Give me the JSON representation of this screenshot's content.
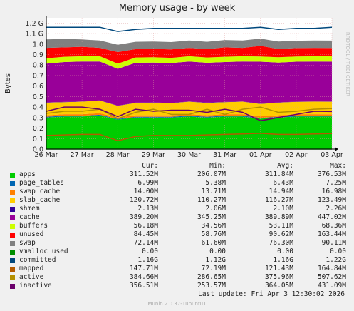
{
  "chart_data": {
    "type": "area",
    "title": "Memory usage - by week",
    "ylabel": "Bytes",
    "side_label": "RRDTOOL / TOBI OETIKER",
    "ylim": [
      0,
      1.25
    ],
    "y_tick_labels": [
      "0.0",
      "0.1",
      "0.2",
      "0.3",
      "0.4",
      "0.5",
      "0.6",
      "0.7",
      "0.8",
      "0.9",
      "1.0",
      "1.1 G",
      "1.2 G"
    ],
    "x_tick_labels": [
      "26 Mar",
      "27 Mar",
      "28 Mar",
      "29 Mar",
      "30 Mar",
      "31 Mar",
      "01 Apr",
      "02 Apr",
      "03 Apr"
    ],
    "x": [
      0,
      0.5,
      1,
      1.5,
      2,
      2.5,
      3,
      3.5,
      4,
      4.5,
      5,
      5.5,
      6,
      6.5,
      7,
      7.5,
      8
    ],
    "stack": [
      {
        "name": "apps",
        "color": "#00cc00",
        "values": [
          0.3,
          0.31,
          0.31,
          0.32,
          0.28,
          0.3,
          0.3,
          0.3,
          0.31,
          0.3,
          0.31,
          0.31,
          0.29,
          0.3,
          0.31,
          0.31,
          0.31
        ]
      },
      {
        "name": "page_tables",
        "color": "#0066b3",
        "values": [
          0.007,
          0.007,
          0.007,
          0.007,
          0.007,
          0.007,
          0.007,
          0.007,
          0.007,
          0.007,
          0.007,
          0.007,
          0.007,
          0.007,
          0.007,
          0.007,
          0.007
        ]
      },
      {
        "name": "swap_cache",
        "color": "#ff8000",
        "values": [
          0.015,
          0.015,
          0.015,
          0.015,
          0.015,
          0.015,
          0.015,
          0.015,
          0.015,
          0.015,
          0.015,
          0.015,
          0.015,
          0.015,
          0.015,
          0.015,
          0.014
        ]
      },
      {
        "name": "slab_cache",
        "color": "#ffcc00",
        "values": [
          0.12,
          0.115,
          0.12,
          0.12,
          0.11,
          0.118,
          0.12,
          0.115,
          0.12,
          0.118,
          0.115,
          0.12,
          0.118,
          0.12,
          0.118,
          0.12,
          0.12
        ]
      },
      {
        "name": "shmem",
        "color": "#330099",
        "values": [
          0.002,
          0.002,
          0.002,
          0.002,
          0.002,
          0.002,
          0.002,
          0.002,
          0.002,
          0.002,
          0.002,
          0.002,
          0.002,
          0.002,
          0.002,
          0.002,
          0.002
        ]
      },
      {
        "name": "cache",
        "color": "#990099",
        "values": [
          0.37,
          0.38,
          0.38,
          0.37,
          0.35,
          0.38,
          0.38,
          0.38,
          0.38,
          0.38,
          0.38,
          0.38,
          0.4,
          0.38,
          0.38,
          0.38,
          0.38
        ]
      },
      {
        "name": "buffers",
        "color": "#ccff00",
        "values": [
          0.05,
          0.05,
          0.05,
          0.05,
          0.05,
          0.05,
          0.05,
          0.05,
          0.05,
          0.05,
          0.05,
          0.05,
          0.05,
          0.05,
          0.05,
          0.05,
          0.05
        ]
      },
      {
        "name": "unused",
        "color": "#ff0000",
        "values": [
          0.1,
          0.09,
          0.09,
          0.08,
          0.11,
          0.08,
          0.08,
          0.08,
          0.08,
          0.08,
          0.09,
          0.08,
          0.1,
          0.08,
          0.08,
          0.08,
          0.08
        ]
      },
      {
        "name": "swap",
        "color": "#808080",
        "values": [
          0.08,
          0.08,
          0.07,
          0.07,
          0.07,
          0.07,
          0.07,
          0.07,
          0.07,
          0.07,
          0.07,
          0.07,
          0.07,
          0.07,
          0.07,
          0.07,
          0.07
        ]
      }
    ],
    "lines": [
      {
        "name": "vmalloc_used",
        "color": "#008f00",
        "values": [
          0,
          0,
          0,
          0,
          0,
          0,
          0,
          0,
          0,
          0,
          0,
          0,
          0,
          0,
          0,
          0,
          0
        ]
      },
      {
        "name": "committed",
        "color": "#00487d",
        "values": [
          1.16,
          1.16,
          1.16,
          1.16,
          1.12,
          1.14,
          1.15,
          1.15,
          1.15,
          1.15,
          1.15,
          1.15,
          1.16,
          1.14,
          1.15,
          1.15,
          1.16
        ]
      },
      {
        "name": "mapped",
        "color": "#b35a00",
        "values": [
          0.13,
          0.135,
          0.14,
          0.14,
          0.08,
          0.12,
          0.13,
          0.13,
          0.13,
          0.135,
          0.14,
          0.145,
          0.15,
          0.14,
          0.14,
          0.145,
          0.148
        ]
      },
      {
        "name": "active",
        "color": "#b38f00",
        "values": [
          0.34,
          0.36,
          0.36,
          0.38,
          0.29,
          0.35,
          0.38,
          0.33,
          0.33,
          0.38,
          0.33,
          0.38,
          0.4,
          0.35,
          0.36,
          0.38,
          0.385
        ]
      },
      {
        "name": "inactive",
        "color": "#6b006b",
        "values": [
          0.36,
          0.4,
          0.4,
          0.38,
          0.31,
          0.38,
          0.36,
          0.37,
          0.37,
          0.35,
          0.38,
          0.35,
          0.27,
          0.3,
          0.33,
          0.36,
          0.357
        ]
      }
    ]
  },
  "legend": {
    "headers": [
      "Cur:",
      "Min:",
      "Avg:",
      "Max:"
    ],
    "rows": [
      {
        "name": "apps",
        "color": "#00cc00",
        "cur": "311.52M",
        "min": "206.07M",
        "avg": "311.84M",
        "max": "376.53M"
      },
      {
        "name": "page_tables",
        "color": "#0066b3",
        "cur": "6.99M",
        "min": "5.38M",
        "avg": "6.43M",
        "max": "7.25M"
      },
      {
        "name": "swap_cache",
        "color": "#ff8000",
        "cur": "14.00M",
        "min": "13.71M",
        "avg": "14.94M",
        "max": "16.98M"
      },
      {
        "name": "slab_cache",
        "color": "#ffcc00",
        "cur": "120.72M",
        "min": "110.27M",
        "avg": "116.27M",
        "max": "123.49M"
      },
      {
        "name": "shmem",
        "color": "#330099",
        "cur": "2.13M",
        "min": "2.06M",
        "avg": "2.10M",
        "max": "2.26M"
      },
      {
        "name": "cache",
        "color": "#990099",
        "cur": "389.20M",
        "min": "345.25M",
        "avg": "389.89M",
        "max": "447.02M"
      },
      {
        "name": "buffers",
        "color": "#ccff00",
        "cur": "56.18M",
        "min": "34.56M",
        "avg": "53.11M",
        "max": "68.36M"
      },
      {
        "name": "unused",
        "color": "#ff0000",
        "cur": "84.45M",
        "min": "58.76M",
        "avg": "90.62M",
        "max": "163.44M"
      },
      {
        "name": "swap",
        "color": "#808080",
        "cur": "72.14M",
        "min": "61.60M",
        "avg": "76.30M",
        "max": "90.11M"
      },
      {
        "name": "vmalloc_used",
        "color": "#008f00",
        "cur": "0.00",
        "min": "0.00",
        "avg": "0.00",
        "max": "0.00"
      },
      {
        "name": "committed",
        "color": "#00487d",
        "cur": "1.16G",
        "min": "1.12G",
        "avg": "1.16G",
        "max": "1.22G"
      },
      {
        "name": "mapped",
        "color": "#b35a00",
        "cur": "147.71M",
        "min": "72.19M",
        "avg": "121.43M",
        "max": "164.84M"
      },
      {
        "name": "active",
        "color": "#b38f00",
        "cur": "384.66M",
        "min": "286.65M",
        "avg": "375.96M",
        "max": "507.62M"
      },
      {
        "name": "inactive",
        "color": "#6b006b",
        "cur": "356.51M",
        "min": "253.57M",
        "avg": "364.05M",
        "max": "431.09M"
      }
    ]
  },
  "last_update": "Last update: Fri Apr  3 12:30:02 2026",
  "footer": "Munin 2.0.37-1ubuntu1"
}
